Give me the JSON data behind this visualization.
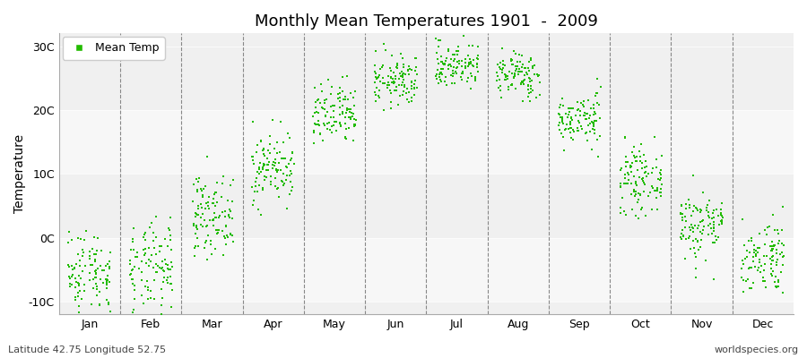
{
  "title": "Monthly Mean Temperatures 1901  -  2009",
  "ylabel": "Temperature",
  "xlabel_months": [
    "Jan",
    "Feb",
    "Mar",
    "Apr",
    "May",
    "Jun",
    "Jul",
    "Aug",
    "Sep",
    "Oct",
    "Nov",
    "Dec"
  ],
  "bottom_left": "Latitude 42.75 Longitude 52.75",
  "bottom_right": "worldspecies.org",
  "legend_label": "Mean Temp",
  "marker_color": "#22bb00",
  "plot_bg": "#f0f0f0",
  "outer_bg": "#ffffff",
  "ylim": [
    -12,
    32
  ],
  "yticks": [
    -10,
    0,
    10,
    20,
    30
  ],
  "ytick_labels": [
    "-10C",
    "0C",
    "10C",
    "20C",
    "30C"
  ],
  "n_years": 109,
  "monthly_means": [
    -5.5,
    -5.0,
    3.5,
    11.0,
    19.0,
    24.5,
    27.0,
    25.5,
    18.5,
    9.0,
    2.0,
    -3.0
  ],
  "monthly_stds": [
    3.5,
    3.5,
    3.0,
    2.8,
    2.5,
    2.0,
    1.8,
    1.8,
    2.0,
    2.5,
    2.8,
    3.0
  ],
  "seed": 42
}
